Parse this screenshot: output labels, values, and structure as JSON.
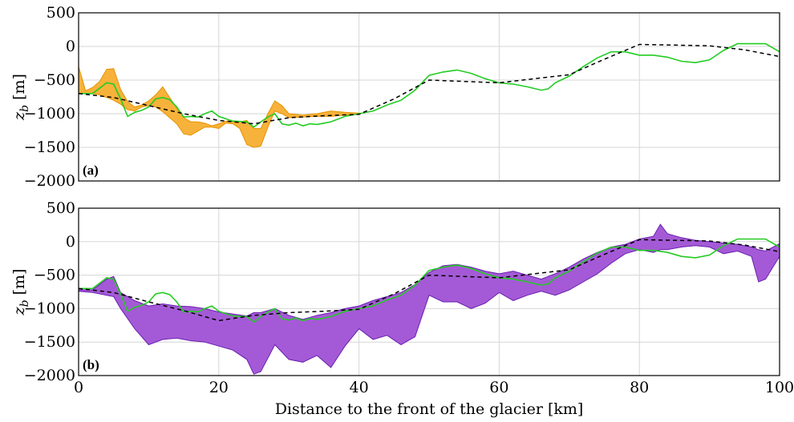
{
  "chart_data": [
    {
      "type": "line",
      "panel_label": "(a)",
      "ylabel": "z_b [m]",
      "xlabel": "",
      "xlim": [
        0,
        100
      ],
      "ylim": [
        -2000,
        500
      ],
      "yticks": [
        500,
        0,
        -500,
        -1000,
        -1500,
        -2000
      ],
      "ytick_labels": [
        "500",
        "0",
        "−500",
        "−1000",
        "−1500",
        "−2000"
      ],
      "xticks": [
        0,
        20,
        40,
        60,
        80,
        100
      ],
      "grid": true,
      "colors": {
        "band_fill": "#f7b23b",
        "band_edge": "#e59400",
        "green": "#22cc22",
        "dashed": "#000000"
      },
      "band": {
        "x": [
          0,
          1,
          2,
          3,
          4,
          5,
          6,
          7,
          8,
          9,
          10,
          11,
          12,
          13,
          14,
          15,
          16,
          17,
          18,
          19,
          20,
          21,
          22,
          23,
          24,
          25,
          26,
          27,
          28,
          29,
          30,
          32,
          34,
          36,
          38,
          40
        ],
        "upper": [
          -300,
          -660,
          -610,
          -520,
          -340,
          -330,
          -640,
          -820,
          -900,
          -870,
          -810,
          -720,
          -600,
          -760,
          -920,
          -1060,
          -1120,
          -1120,
          -1140,
          -1180,
          -1150,
          -1110,
          -1110,
          -1120,
          -1100,
          -1220,
          -1220,
          -1000,
          -810,
          -880,
          -1000,
          -1020,
          -1000,
          -960,
          -980,
          -990
        ],
        "lower": [
          -700,
          -700,
          -700,
          -720,
          -760,
          -800,
          -860,
          -940,
          -960,
          -900,
          -880,
          -900,
          -970,
          -1060,
          -1150,
          -1300,
          -1320,
          -1260,
          -1200,
          -1200,
          -1220,
          -1140,
          -1150,
          -1220,
          -1460,
          -1500,
          -1480,
          -1200,
          -960,
          -1000,
          -1060,
          -1050,
          -1040,
          -1040,
          -1020,
          -1010
        ]
      },
      "series": [
        {
          "style": "green",
          "x": [
            0,
            2,
            4,
            5,
            6,
            7,
            8,
            9,
            10,
            11,
            12,
            13,
            14,
            15,
            16,
            17,
            18,
            19,
            20,
            22,
            24,
            25,
            26,
            27,
            28,
            29,
            30,
            31,
            32,
            33,
            34,
            35,
            36,
            38,
            40,
            42,
            44,
            46,
            48,
            50,
            52,
            54,
            56,
            58,
            60,
            62,
            64,
            66,
            67,
            68,
            70,
            72,
            74,
            76,
            78,
            80,
            82,
            84,
            86,
            88,
            90,
            92,
            94,
            96,
            98,
            100
          ],
          "y": [
            -700,
            -700,
            -540,
            -560,
            -780,
            -1040,
            -980,
            -950,
            -900,
            -780,
            -760,
            -790,
            -900,
            -1050,
            -1040,
            -1050,
            -1000,
            -960,
            -1040,
            -1110,
            -1120,
            -1200,
            -1120,
            -1050,
            -1000,
            -1150,
            -1170,
            -1140,
            -1180,
            -1150,
            -1160,
            -1140,
            -1120,
            -1040,
            -1000,
            -960,
            -870,
            -800,
            -650,
            -430,
            -380,
            -350,
            -400,
            -480,
            -540,
            -560,
            -600,
            -650,
            -630,
            -540,
            -440,
            -300,
            -170,
            -80,
            -80,
            -130,
            -130,
            -160,
            -220,
            -240,
            -200,
            -60,
            40,
            40,
            40,
            -80
          ]
        },
        {
          "style": "dashed",
          "x": [
            0,
            5,
            10,
            15,
            20,
            25,
            30,
            35,
            40,
            45,
            50,
            55,
            60,
            65,
            70,
            75,
            80,
            85,
            90,
            95,
            100
          ],
          "y": [
            -700,
            -760,
            -880,
            -1000,
            -1100,
            -1150,
            -1060,
            -1030,
            -1010,
            -780,
            -500,
            -520,
            -540,
            -480,
            -420,
            -190,
            30,
            20,
            10,
            -50,
            -150
          ]
        }
      ]
    },
    {
      "type": "line",
      "panel_label": "(b)",
      "ylabel": "z_b [m]",
      "xlabel": "Distance to the front of the glacier [km]",
      "xlim": [
        0,
        100
      ],
      "ylim": [
        -2000,
        500
      ],
      "yticks": [
        500,
        0,
        -500,
        -1000,
        -1500,
        -2000
      ],
      "ytick_labels": [
        "500",
        "0",
        "−500",
        "−1000",
        "−1500",
        "−2000"
      ],
      "xticks": [
        0,
        20,
        40,
        60,
        80,
        100
      ],
      "xtick_labels": [
        "0",
        "20",
        "40",
        "60",
        "80",
        "100"
      ],
      "grid": true,
      "colors": {
        "band_fill": "#a45ad6",
        "band_edge": "#6a1fb0",
        "green": "#22cc22",
        "dashed": "#000000"
      },
      "band": {
        "x": [
          0,
          2,
          4,
          5,
          6,
          8,
          10,
          12,
          14,
          16,
          18,
          20,
          22,
          24,
          25,
          26,
          28,
          30,
          32,
          34,
          36,
          38,
          40,
          42,
          44,
          46,
          48,
          50,
          52,
          54,
          56,
          58,
          60,
          62,
          64,
          66,
          68,
          70,
          72,
          74,
          76,
          78,
          80,
          82,
          83,
          84,
          86,
          88,
          90,
          92,
          94,
          96,
          97,
          98,
          100
        ],
        "upper": [
          -720,
          -720,
          -560,
          -520,
          -760,
          -880,
          -960,
          -930,
          -960,
          -970,
          -1000,
          -1050,
          -1080,
          -1110,
          -1060,
          -1060,
          -1000,
          -1100,
          -1160,
          -1100,
          -1060,
          -1000,
          -960,
          -880,
          -820,
          -760,
          -640,
          -460,
          -360,
          -340,
          -380,
          -440,
          -480,
          -440,
          -500,
          -560,
          -480,
          -380,
          -260,
          -160,
          -80,
          -40,
          40,
          80,
          260,
          120,
          60,
          20,
          0,
          -20,
          -40,
          -80,
          -120,
          -140,
          -30
        ],
        "lower": [
          -740,
          -760,
          -800,
          -820,
          -1000,
          -1300,
          -1540,
          -1460,
          -1440,
          -1480,
          -1500,
          -1560,
          -1620,
          -1760,
          -1980,
          -1940,
          -1540,
          -1760,
          -1800,
          -1700,
          -1880,
          -1560,
          -1300,
          -1460,
          -1400,
          -1540,
          -1420,
          -800,
          -900,
          -900,
          -1000,
          -920,
          -760,
          -880,
          -800,
          -740,
          -800,
          -720,
          -600,
          -480,
          -320,
          -180,
          -120,
          -160,
          -120,
          -120,
          -80,
          -60,
          -80,
          -180,
          -140,
          -220,
          -600,
          -560,
          -220
        ]
      },
      "series": [
        {
          "style": "green",
          "x": [
            0,
            2,
            4,
            5,
            6,
            7,
            8,
            9,
            10,
            11,
            12,
            13,
            14,
            15,
            16,
            17,
            18,
            19,
            20,
            22,
            24,
            25,
            26,
            27,
            28,
            29,
            30,
            31,
            32,
            33,
            34,
            35,
            36,
            38,
            40,
            42,
            44,
            46,
            48,
            50,
            52,
            54,
            56,
            58,
            60,
            62,
            64,
            66,
            67,
            68,
            70,
            72,
            74,
            76,
            78,
            80,
            82,
            84,
            86,
            88,
            90,
            92,
            94,
            96,
            98,
            100
          ],
          "y": [
            -700,
            -700,
            -540,
            -560,
            -780,
            -1040,
            -980,
            -950,
            -900,
            -780,
            -760,
            -790,
            -900,
            -1050,
            -1040,
            -1050,
            -1000,
            -960,
            -1040,
            -1110,
            -1120,
            -1200,
            -1120,
            -1050,
            -1000,
            -1150,
            -1170,
            -1140,
            -1180,
            -1150,
            -1160,
            -1140,
            -1120,
            -1040,
            -1000,
            -960,
            -870,
            -800,
            -650,
            -430,
            -380,
            -350,
            -400,
            -480,
            -540,
            -560,
            -600,
            -650,
            -630,
            -540,
            -440,
            -300,
            -170,
            -80,
            -80,
            -130,
            -130,
            -160,
            -220,
            -240,
            -200,
            -60,
            40,
            40,
            40,
            -80
          ]
        },
        {
          "style": "dashed",
          "x": [
            0,
            5,
            10,
            15,
            20,
            25,
            30,
            35,
            40,
            45,
            50,
            55,
            60,
            65,
            70,
            75,
            80,
            85,
            90,
            95,
            100
          ],
          "y": [
            -700,
            -760,
            -900,
            -1030,
            -1180,
            -1100,
            -1060,
            -1040,
            -1010,
            -780,
            -500,
            -520,
            -540,
            -480,
            -420,
            -190,
            30,
            20,
            10,
            -50,
            -150
          ]
        }
      ]
    }
  ]
}
